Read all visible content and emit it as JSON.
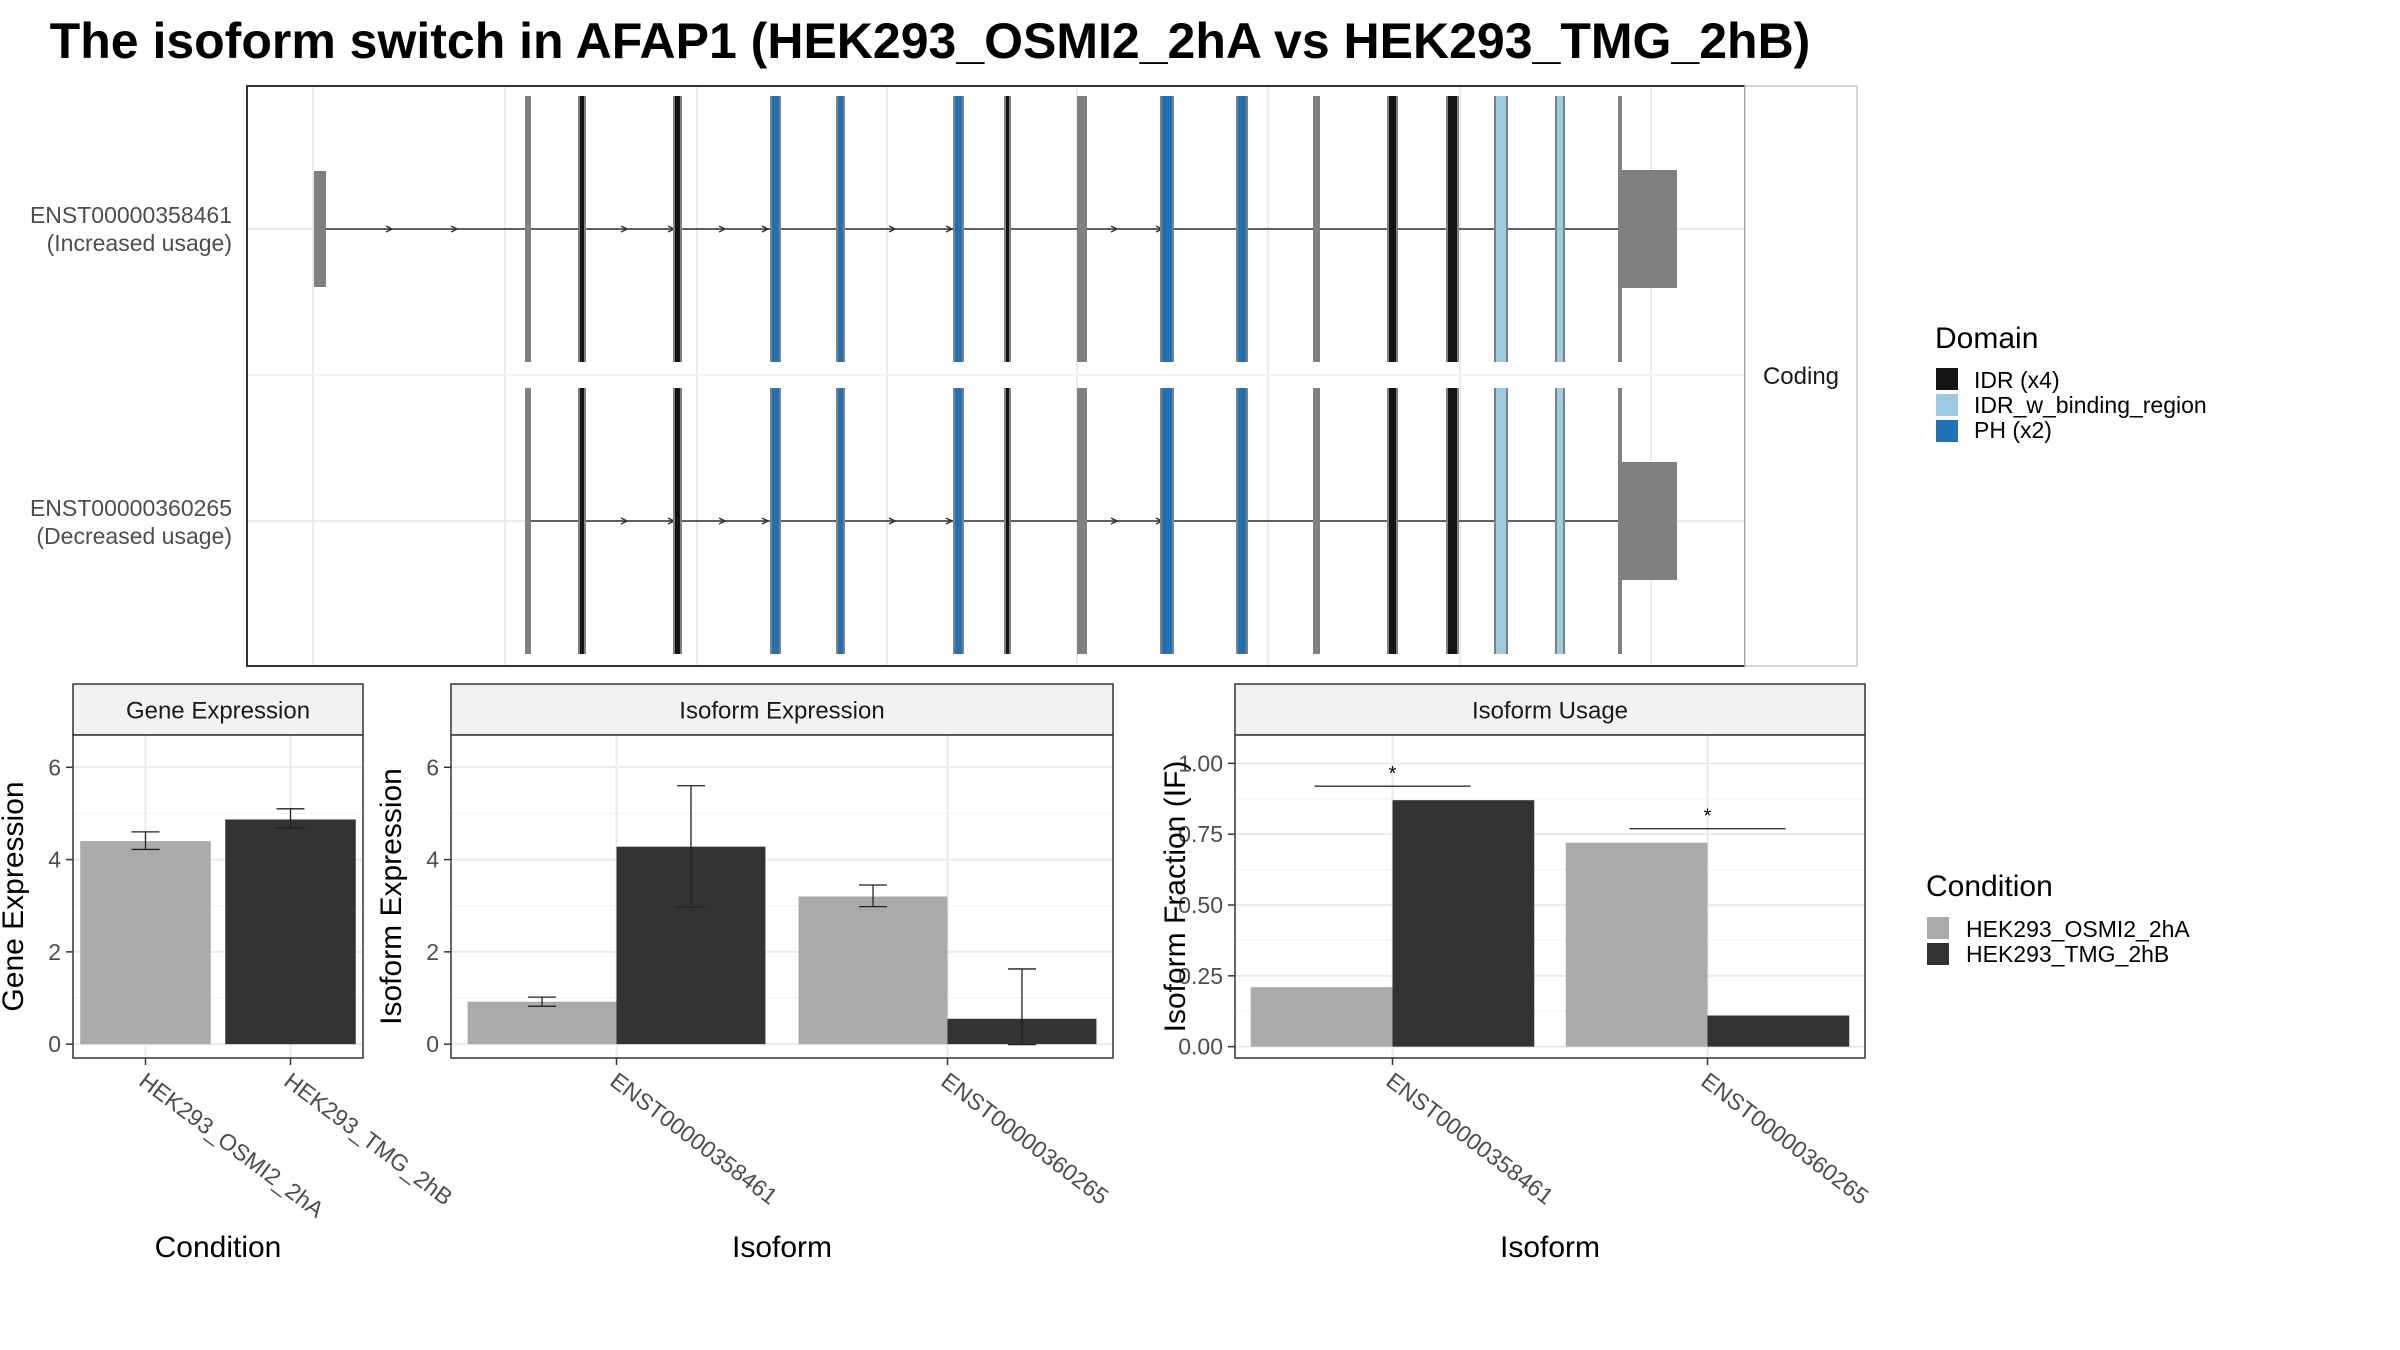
{
  "title": "The isoform switch in AFAP1 (HEK293_OSMI2_2hA vs HEK293_TMG_2hB)",
  "colors": {
    "idr": "#141414",
    "idr_binding": "#9ECAE1",
    "ph": "#2171B5",
    "exon": "#808080",
    "cond_a": "#AAAAAA",
    "cond_b": "#333333",
    "panel_border": "#333333",
    "strip_fill": "#F2F2F2",
    "grid": "#EBEBEB"
  },
  "chart_data": [
    {
      "type": "structure",
      "panel_label": "Coding",
      "isoforms": [
        {
          "id": "ENST00000358461",
          "usage": "(Increased usage)"
        },
        {
          "id": "ENST00000360265",
          "usage": "(Decreased usage)"
        }
      ],
      "legend": {
        "title": "Domain",
        "entries": [
          {
            "label": "IDR (x4)",
            "color": "#141414"
          },
          {
            "label": "IDR_w_binding_region",
            "color": "#9ECAE1"
          },
          {
            "label": "PH (x2)",
            "color": "#2171B5"
          }
        ]
      }
    },
    {
      "type": "bar",
      "title": "Gene Expression",
      "xlabel": "Condition",
      "ylabel": "Gene Expression",
      "ylim": [
        -0.3,
        6.7
      ],
      "yticks": [
        0,
        2,
        4,
        6
      ],
      "categories": [
        "HEK293_OSMI2_2hA",
        "HEK293_TMG_2hB"
      ],
      "values": [
        4.4,
        4.87
      ],
      "errors": [
        [
          4.22,
          4.6
        ],
        [
          4.68,
          5.1
        ]
      ]
    },
    {
      "type": "bar",
      "title": "Isoform Expression",
      "xlabel": "Isoform",
      "ylabel": "Isoform Expression",
      "ylim": [
        -0.3,
        6.7
      ],
      "yticks": [
        0,
        2,
        4,
        6
      ],
      "categories": [
        "ENST00000358461",
        "ENST00000360265"
      ],
      "series": [
        {
          "name": "HEK293_OSMI2_2hA",
          "values": [
            0.92,
            3.2
          ],
          "errors": [
            [
              0.82,
              1.02
            ],
            [
              2.98,
              3.45
            ]
          ]
        },
        {
          "name": "HEK293_TMG_2hB",
          "values": [
            4.28,
            0.55
          ],
          "errors": [
            [
              2.97,
              5.6
            ],
            [
              -0.01,
              1.63
            ]
          ]
        }
      ]
    },
    {
      "type": "bar",
      "title": "Isoform Usage",
      "xlabel": "Isoform",
      "ylabel": "Isoform Fraction (IF)",
      "ylim": [
        -0.04,
        1.1
      ],
      "yticks": [
        "0.00",
        "0.25",
        "0.50",
        "0.75",
        "1.00"
      ],
      "categories": [
        "ENST00000358461",
        "ENST00000360265"
      ],
      "series": [
        {
          "name": "HEK293_OSMI2_2hA",
          "values": [
            0.21,
            0.72
          ]
        },
        {
          "name": "HEK293_TMG_2hB",
          "values": [
            0.87,
            0.11
          ]
        }
      ],
      "significance": [
        "*",
        "*"
      ]
    },
    {
      "type": "legend",
      "title": "Condition",
      "entries": [
        {
          "label": "HEK293_OSMI2_2hA",
          "color": "#AAAAAA"
        },
        {
          "label": "HEK293_TMG_2hB",
          "color": "#333333"
        }
      ]
    }
  ]
}
